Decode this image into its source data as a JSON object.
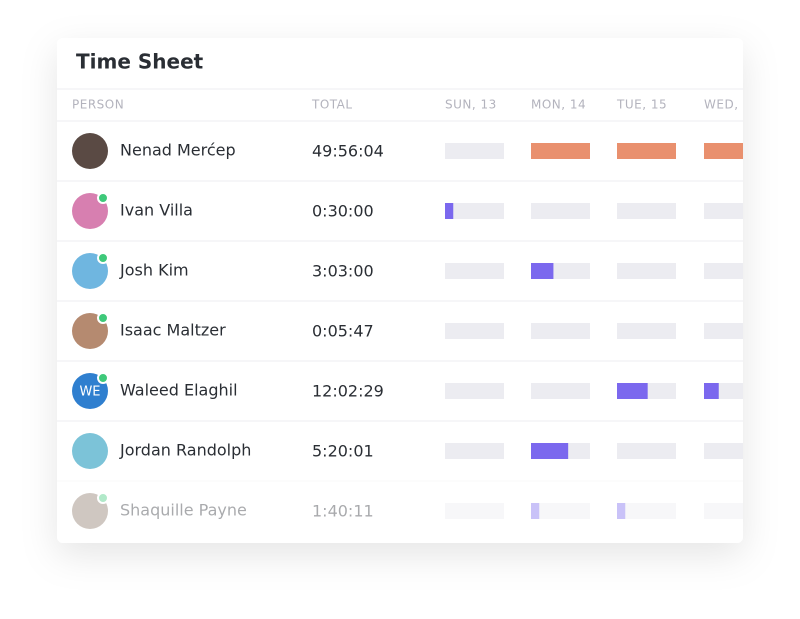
{
  "title": "Time Sheet",
  "columns": [
    "PERSON",
    "TOTAL",
    "SUN, 13",
    "MON, 14",
    "TUE, 15",
    "WED,"
  ],
  "rows": [
    {
      "name": "Nenad Merćep",
      "total": "49:56:04",
      "avatar_color": "#5a4a44",
      "online": false,
      "color": "#e9906e",
      "days": [
        0,
        1,
        1,
        1
      ]
    },
    {
      "name": "Ivan Villa",
      "total": "0:30:00",
      "avatar_color": "#d77fb0",
      "online": true,
      "color": "#7b68ee",
      "days": [
        0.14,
        0,
        0,
        0
      ]
    },
    {
      "name": "Josh Kim",
      "total": "3:03:00",
      "avatar_color": "#6fb6e0",
      "online": true,
      "color": "#7b68ee",
      "days": [
        0,
        0.38,
        0,
        0
      ]
    },
    {
      "name": "Isaac Maltzer",
      "total": "0:05:47",
      "avatar_color": "#b58a70",
      "online": true,
      "color": "#7b68ee",
      "days": [
        0,
        0,
        0,
        0
      ]
    },
    {
      "name": "Waleed Elaghil",
      "total": "12:02:29",
      "avatar_color": "#2f7fcf",
      "initials": "WE",
      "online": true,
      "color": "#7b68ee",
      "days": [
        0,
        0,
        0.52,
        0.25
      ]
    },
    {
      "name": "Jordan Randolph",
      "total": "5:20:01",
      "avatar_color": "#7cc3d8",
      "online": false,
      "color": "#7b68ee",
      "days": [
        0,
        0.63,
        0,
        0
      ]
    },
    {
      "name": "Shaquille Payne",
      "total": "1:40:11",
      "avatar_color": "#8a7566",
      "online": true,
      "color": "#7b68ee",
      "days": [
        0,
        0.14,
        0.14,
        0
      ]
    }
  ]
}
